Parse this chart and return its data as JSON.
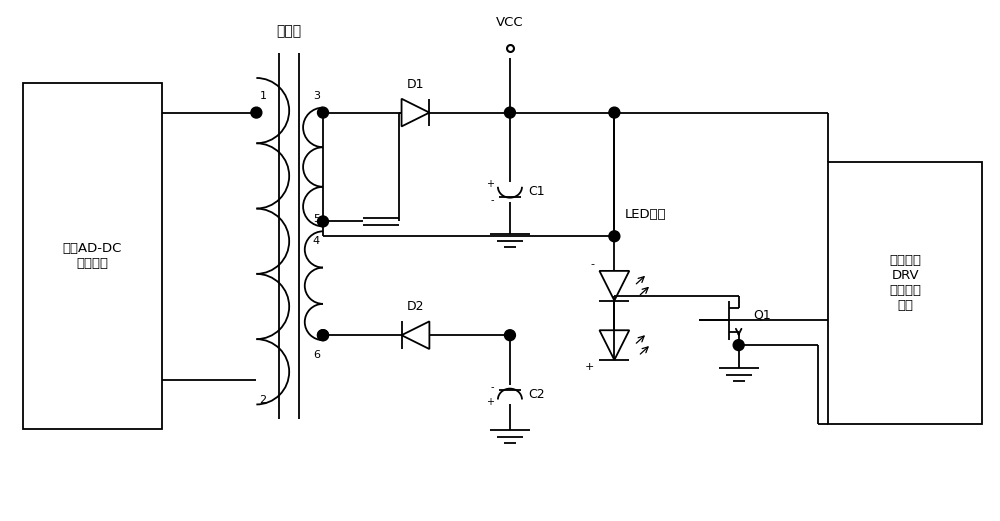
{
  "bg_color": "#ffffff",
  "line_color": "#000000",
  "lw": 1.3,
  "fig_w": 10.0,
  "fig_h": 5.21,
  "labels": {
    "transformer": "变压器",
    "primary": "初级AD-DC\n控制模块",
    "backlight": "背灯驱动\nDRV\n控制电路\n模块",
    "vcc": "VCC",
    "d1": "D1",
    "d2": "D2",
    "c1": "C1",
    "c2": "C2",
    "q1": "Q1",
    "led": "LED灯组",
    "n1": "1",
    "n2": "2",
    "n3": "3",
    "n4": "4",
    "n5": "5",
    "n6": "6"
  }
}
